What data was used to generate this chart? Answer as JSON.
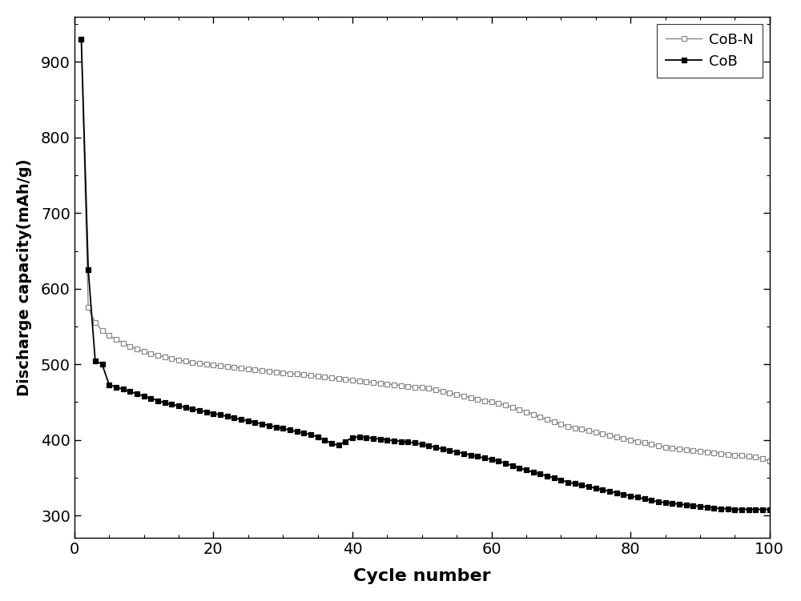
{
  "title": "",
  "xlabel": "Cycle number",
  "ylabel": "Discharge capacity(mAh/g)",
  "xlim": [
    0,
    100
  ],
  "ylim": [
    270,
    960
  ],
  "yticks": [
    300,
    400,
    500,
    600,
    700,
    800,
    900
  ],
  "xticks": [
    0,
    20,
    40,
    60,
    80,
    100
  ],
  "background_color": "#ffffff",
  "cob_n_color": "#888888",
  "cob_color": "#000000",
  "legend_labels": [
    "CoB-N",
    "CoB"
  ],
  "cob_n": {
    "x": [
      1,
      2,
      3,
      4,
      5,
      6,
      7,
      8,
      9,
      10,
      11,
      12,
      13,
      14,
      15,
      16,
      17,
      18,
      19,
      20,
      21,
      22,
      23,
      24,
      25,
      26,
      27,
      28,
      29,
      30,
      31,
      32,
      33,
      34,
      35,
      36,
      37,
      38,
      39,
      40,
      41,
      42,
      43,
      44,
      45,
      46,
      47,
      48,
      49,
      50,
      51,
      52,
      53,
      54,
      55,
      56,
      57,
      58,
      59,
      60,
      61,
      62,
      63,
      64,
      65,
      66,
      67,
      68,
      69,
      70,
      71,
      72,
      73,
      74,
      75,
      76,
      77,
      78,
      79,
      80,
      81,
      82,
      83,
      84,
      85,
      86,
      87,
      88,
      89,
      90,
      91,
      92,
      93,
      94,
      95,
      96,
      97,
      98,
      99,
      100
    ],
    "y": [
      930,
      575,
      555,
      545,
      538,
      533,
      528,
      524,
      520,
      517,
      514,
      512,
      510,
      508,
      506,
      504,
      502,
      501,
      500,
      499,
      498,
      497,
      496,
      495,
      494,
      493,
      492,
      491,
      490,
      489,
      488,
      487,
      486,
      485,
      484,
      483,
      482,
      481,
      480,
      479,
      478,
      477,
      476,
      475,
      474,
      473,
      472,
      471,
      470,
      469,
      468,
      466,
      464,
      462,
      460,
      458,
      456,
      454,
      452,
      450,
      448,
      446,
      443,
      440,
      437,
      434,
      430,
      427,
      424,
      421,
      418,
      416,
      414,
      412,
      410,
      408,
      406,
      404,
      402,
      400,
      398,
      396,
      394,
      392,
      390,
      389,
      388,
      387,
      386,
      385,
      384,
      383,
      382,
      381,
      380,
      379,
      378,
      377,
      375,
      372
    ]
  },
  "cob": {
    "x": [
      1,
      2,
      3,
      4,
      5,
      6,
      7,
      8,
      9,
      10,
      11,
      12,
      13,
      14,
      15,
      16,
      17,
      18,
      19,
      20,
      21,
      22,
      23,
      24,
      25,
      26,
      27,
      28,
      29,
      30,
      31,
      32,
      33,
      34,
      35,
      36,
      37,
      38,
      39,
      40,
      41,
      42,
      43,
      44,
      45,
      46,
      47,
      48,
      49,
      50,
      51,
      52,
      53,
      54,
      55,
      56,
      57,
      58,
      59,
      60,
      61,
      62,
      63,
      64,
      65,
      66,
      67,
      68,
      69,
      70,
      71,
      72,
      73,
      74,
      75,
      76,
      77,
      78,
      79,
      80,
      81,
      82,
      83,
      84,
      85,
      86,
      87,
      88,
      89,
      90,
      91,
      92,
      93,
      94,
      95,
      96,
      97,
      98,
      99,
      100
    ],
    "y": [
      930,
      625,
      505,
      500,
      473,
      470,
      467,
      464,
      461,
      458,
      455,
      452,
      449,
      447,
      445,
      443,
      441,
      439,
      437,
      435,
      433,
      431,
      429,
      427,
      425,
      423,
      421,
      419,
      417,
      415,
      413,
      411,
      409,
      407,
      404,
      400,
      395,
      393,
      398,
      403,
      404,
      403,
      402,
      401,
      400,
      399,
      398,
      397,
      396,
      394,
      392,
      390,
      388,
      386,
      384,
      382,
      380,
      378,
      376,
      374,
      372,
      369,
      366,
      363,
      360,
      357,
      355,
      352,
      350,
      347,
      344,
      342,
      340,
      338,
      336,
      334,
      332,
      330,
      328,
      326,
      324,
      322,
      320,
      318,
      317,
      316,
      315,
      314,
      313,
      312,
      311,
      310,
      309,
      309,
      308,
      308,
      308,
      308,
      308,
      308
    ]
  }
}
